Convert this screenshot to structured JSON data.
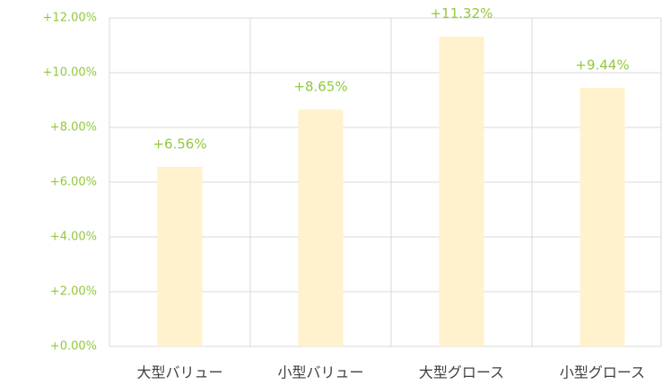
{
  "chart_data": {
    "type": "bar",
    "categories": [
      "大型バリュー",
      "小型バリュー",
      "大型グロース",
      "小型グロース"
    ],
    "values": [
      6.56,
      8.65,
      11.32,
      9.44
    ],
    "value_labels": [
      "+6.56%",
      "+8.65%",
      "+11.32%",
      "+9.44%"
    ],
    "color": "#fff2cc",
    "label_color": "#92c83e",
    "ylim": [
      0,
      12
    ],
    "yticks": [
      {
        "value": 0,
        "label": "+0.00%"
      },
      {
        "value": 2,
        "label": "+2.00%"
      },
      {
        "value": 4,
        "label": "+4.00%"
      },
      {
        "value": 6,
        "label": "+6.00%"
      },
      {
        "value": 8,
        "label": "+8.00%"
      },
      {
        "value": 10,
        "label": "+10.00%"
      },
      {
        "value": 12,
        "label": "+12.00%"
      }
    ],
    "grid": true
  }
}
